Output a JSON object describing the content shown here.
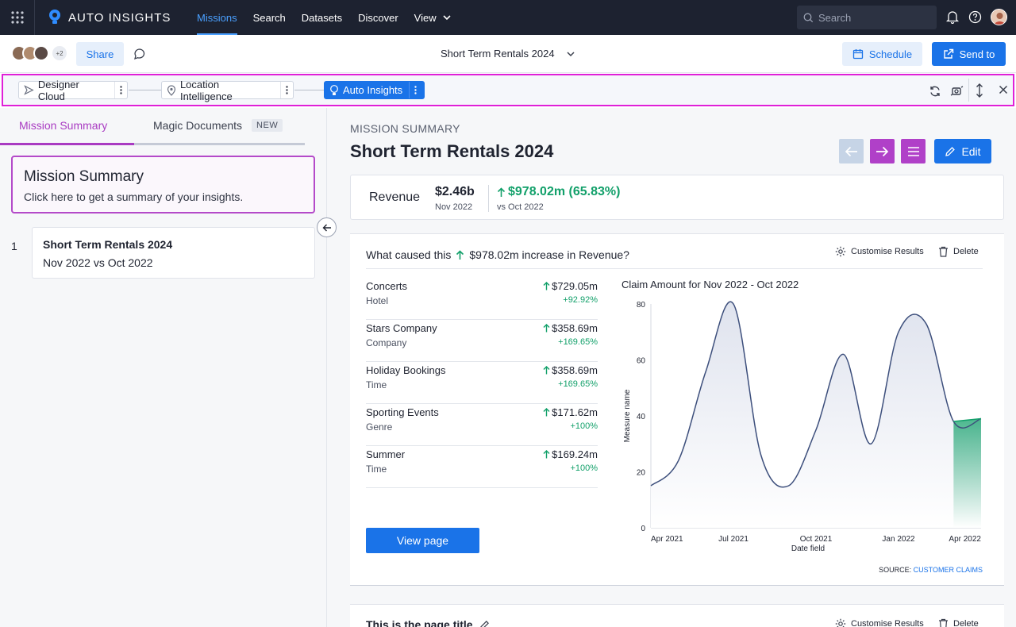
{
  "topbar": {
    "app_name": "AUTO INSIGHTS",
    "nav": [
      "Missions",
      "Search",
      "Datasets",
      "Discover",
      "View"
    ],
    "search_placeholder": "Search"
  },
  "subbar": {
    "avatar_more": "+2",
    "share_label": "Share",
    "doc_title": "Short Term Rentals 2024",
    "schedule_label": "Schedule",
    "send_label": "Send to"
  },
  "workflow": {
    "steps": [
      "Designer Cloud",
      "Location Intelligence",
      "Auto Insights"
    ]
  },
  "left": {
    "tabs": [
      "Mission Summary",
      "Magic Documents"
    ],
    "new_badge": "NEW",
    "summary_title": "Mission Summary",
    "summary_sub": "Click here to get a summary of your insights.",
    "items": [
      {
        "num": "1",
        "title": "Short Term Rentals 2024",
        "sub": "Nov 2022 vs Oct 2022"
      }
    ]
  },
  "main": {
    "eyebrow": "MISSION SUMMARY",
    "title": "Short Term Rentals 2024",
    "edit_label": "Edit",
    "revenue": {
      "label": "Revenue",
      "value": "$2.46b",
      "period": "Nov 2022",
      "change": "$978.02m (65.83%)",
      "compare": "vs Oct 2022"
    },
    "cause": {
      "prefix": "What caused this",
      "suffix": "$978.02m increase in Revenue?",
      "customise": "Customise Results",
      "delete": "Delete",
      "drivers": [
        {
          "name": "Concerts",
          "category": "Hotel",
          "value": "$729.05m",
          "pct": "+92.92%"
        },
        {
          "name": "Stars Company",
          "category": "Company",
          "value": "$358.69m",
          "pct": "+169.65%"
        },
        {
          "name": "Holiday Bookings",
          "category": "Time",
          "value": "$358.69m",
          "pct": "+169.65%"
        },
        {
          "name": "Sporting Events",
          "category": "Genre",
          "value": "$171.62m",
          "pct": "+100%"
        },
        {
          "name": "Summer",
          "category": "Time",
          "value": "$169.24m",
          "pct": "+100%"
        }
      ],
      "view_page": "View page",
      "source_label": "SOURCE:",
      "source_link": "CUSTOMER CLAIMS"
    },
    "card2": {
      "title": "This is the page title",
      "customise": "Customise Results",
      "delete": "Delete"
    }
  },
  "chart_data": {
    "type": "area",
    "title": "Claim Amount for Nov 2022 - Oct 2022",
    "xlabel": "Date field",
    "ylabel": "Measure name",
    "ylim": [
      0,
      80
    ],
    "yticks": [
      "0",
      "20",
      "40",
      "60",
      "80"
    ],
    "xticks": [
      "Apr 2021",
      "Jul 2021",
      "Oct 2021",
      "Jan 2022",
      "Apr 2022"
    ],
    "x": [
      "Apr 2021",
      "May 2021",
      "Jun 2021",
      "Jul 2021",
      "Aug 2021",
      "Sep 2021",
      "Oct 2021",
      "Nov 2021",
      "Dec 2021",
      "Jan 2022",
      "Feb 2022",
      "Mar 2022",
      "Apr 2022"
    ],
    "values": [
      15,
      24,
      56,
      80,
      26,
      15,
      35,
      62,
      30,
      70,
      73,
      38,
      39
    ],
    "highlight_from": "Mar 2022",
    "colors": {
      "line": "#3d4f7c",
      "highlight": "#12a06a"
    }
  }
}
